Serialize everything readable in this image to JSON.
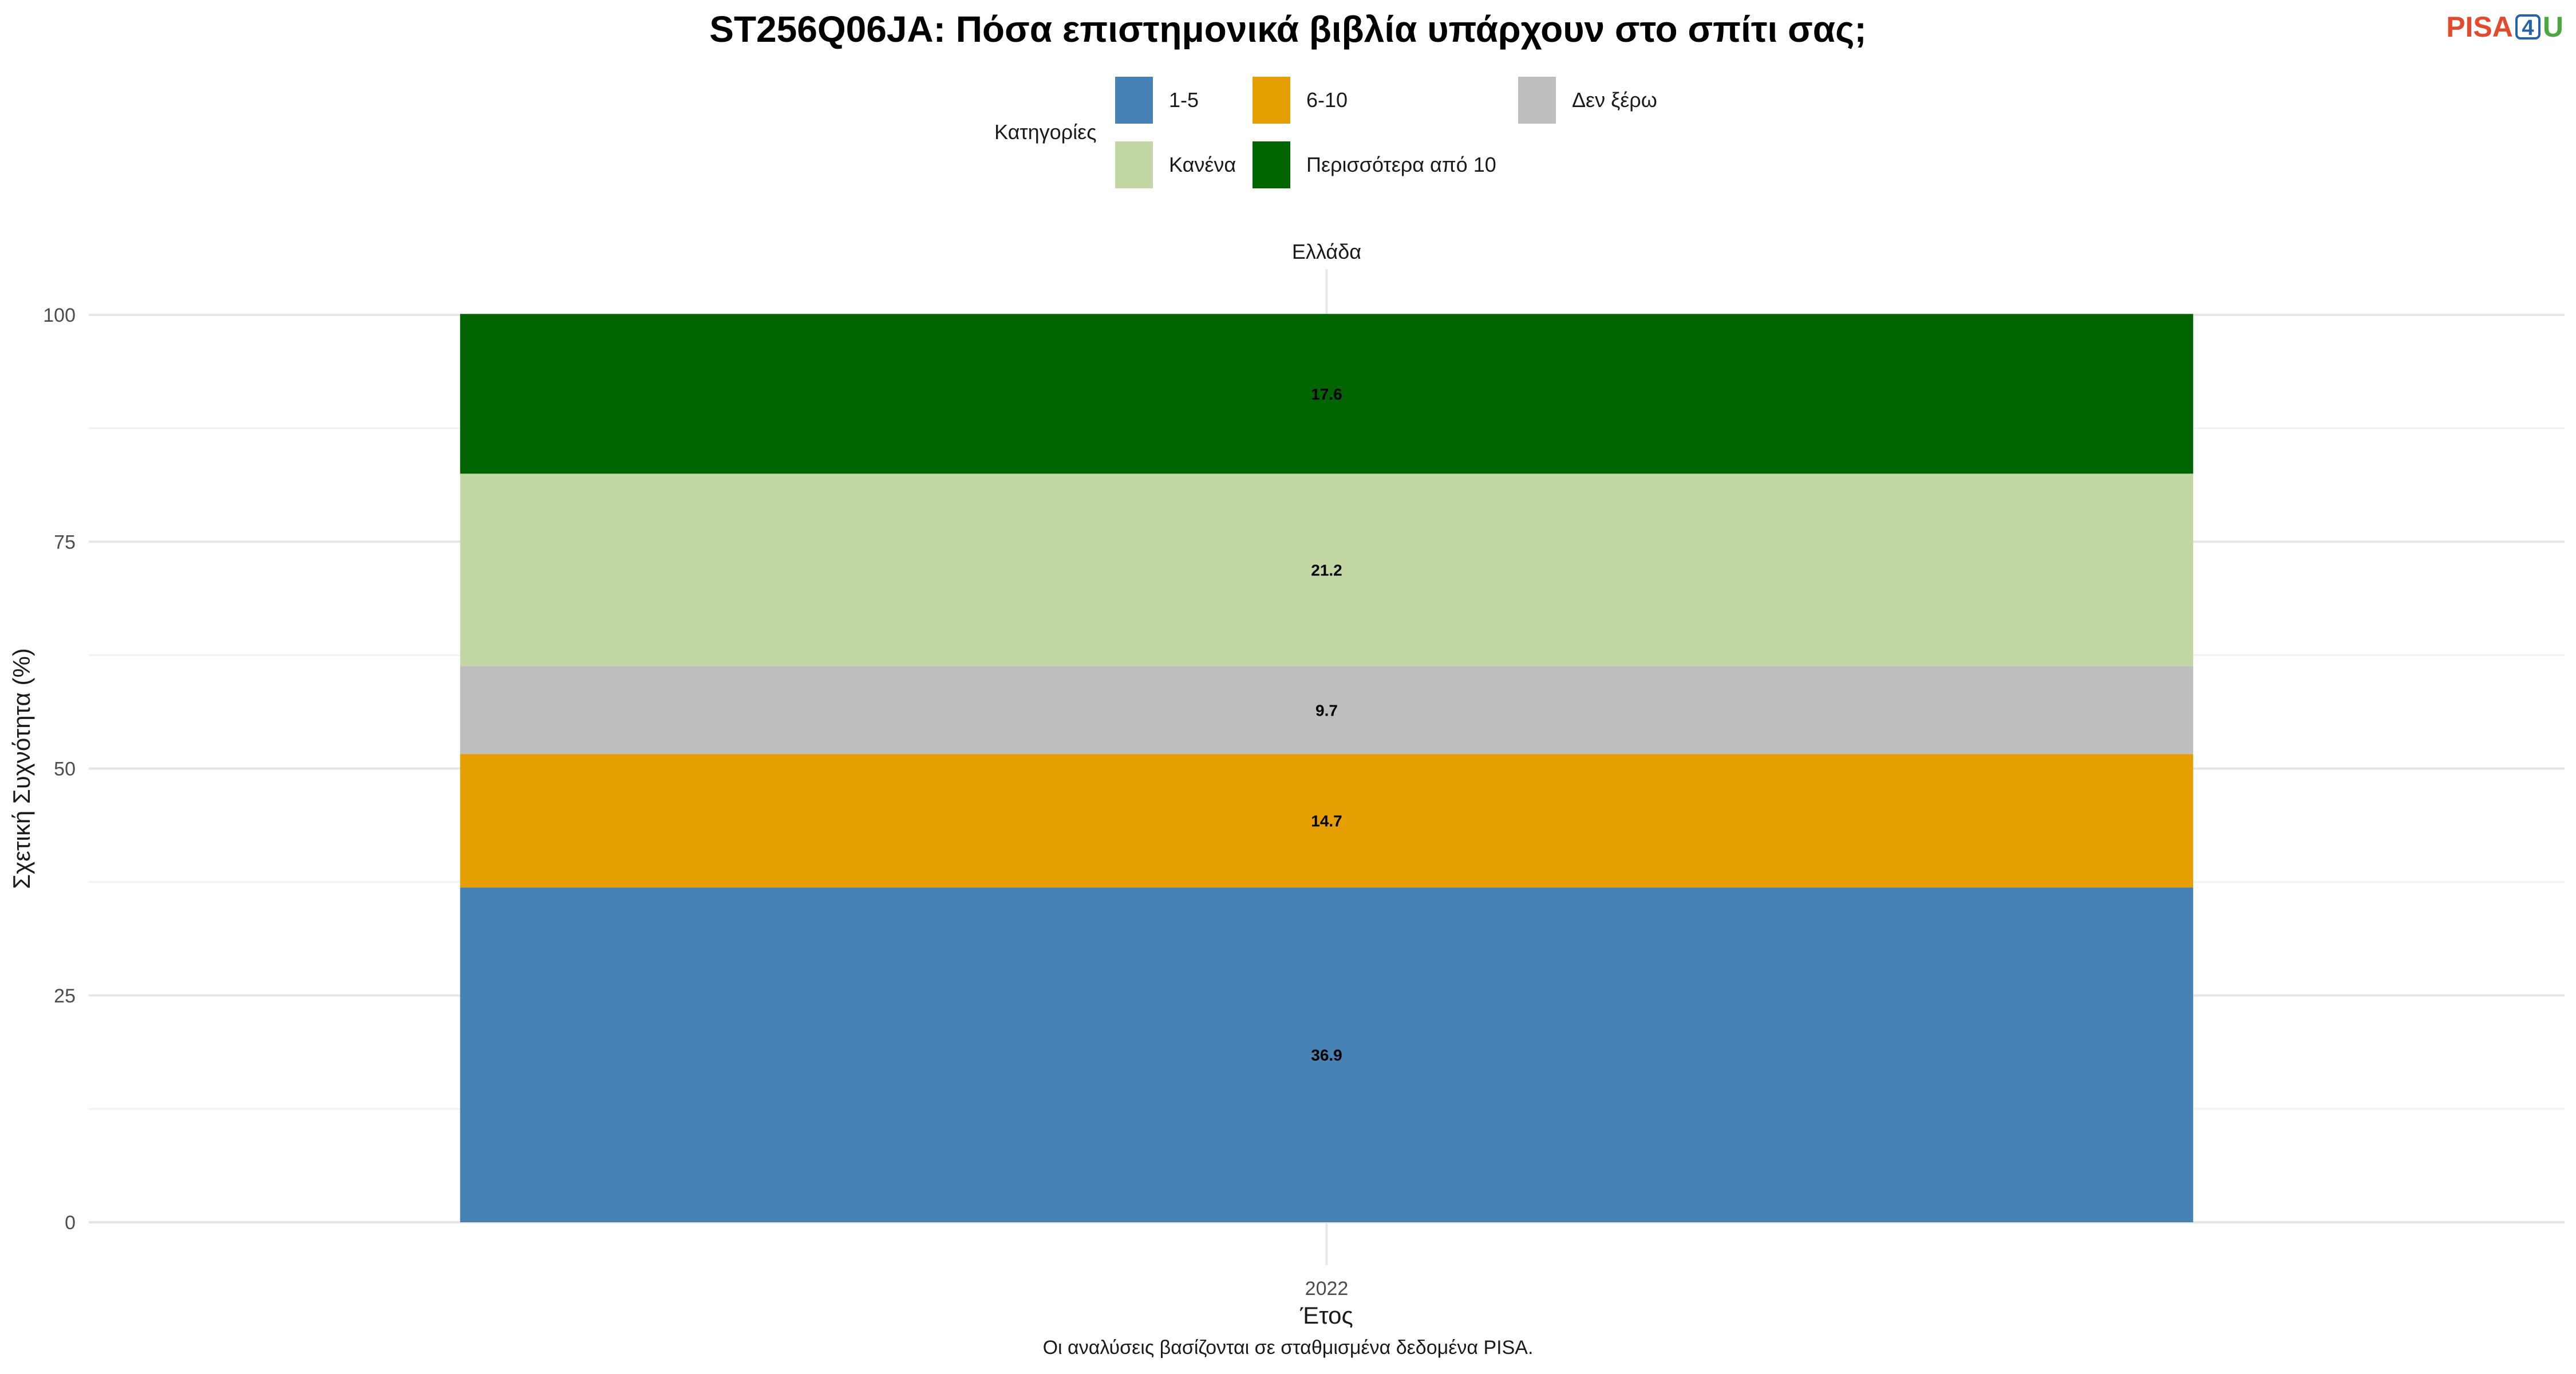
{
  "title": "ST256Q06JA: Πόσα επιστημονικά βιβλία υπάρχουν στο σπίτι σας;",
  "logo": {
    "part1": "PISA",
    "part2": "4",
    "part3": "U"
  },
  "legend": {
    "title": "Κατηγορίες",
    "items": [
      {
        "label": "1-5",
        "color": "#4682B4"
      },
      {
        "label": "6-10",
        "color": "#E69F00"
      },
      {
        "label": "Δεν ξέρω",
        "color": "#BEBEBE"
      },
      {
        "label": "Κανένα",
        "color": "#C3D7A5"
      },
      {
        "label": "Περισσότερα από 10",
        "color": "#006400"
      }
    ]
  },
  "caption": "Οι αναλύσεις βασίζονται σε σταθμισμένα δεδομένα PISA.",
  "chart_data": {
    "type": "bar",
    "stacked": true,
    "facet": "Ελλάδα",
    "categories": [
      "2022"
    ],
    "xlabel": "Έτος",
    "ylabel": "Σχετική Συχνότητα (%)",
    "ylim": [
      0,
      100
    ],
    "yticks": [
      0,
      25,
      50,
      75,
      100
    ],
    "grid": true,
    "legend_position": "top",
    "series": [
      {
        "name": "1-5",
        "values": [
          36.9
        ],
        "color": "#4682B4"
      },
      {
        "name": "6-10",
        "values": [
          14.7
        ],
        "color": "#E69F00"
      },
      {
        "name": "Δεν ξέρω",
        "values": [
          9.7
        ],
        "color": "#BEBEBE"
      },
      {
        "name": "Κανένα",
        "values": [
          21.2
        ],
        "color": "#C3D7A5"
      },
      {
        "name": "Περισσότερα από 10",
        "values": [
          17.6
        ],
        "color": "#006400"
      }
    ]
  }
}
